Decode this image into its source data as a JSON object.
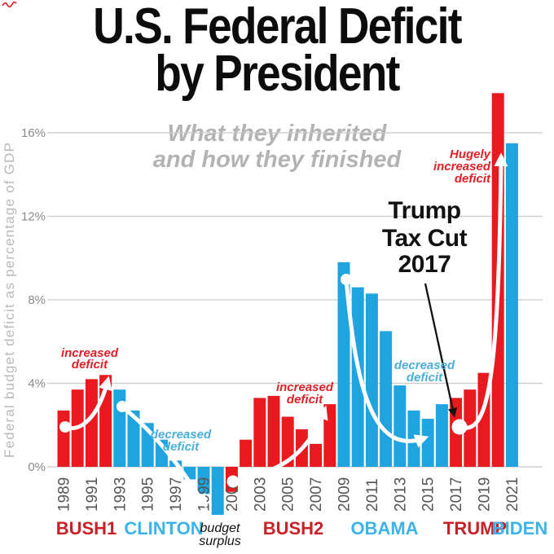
{
  "title": {
    "line1": "U.S. Federal Deficit",
    "line2": "by President"
  },
  "subtitle": {
    "line1": "What they inherited",
    "line2": "and how they finished"
  },
  "chart_data": {
    "type": "bar",
    "title": "U.S. Federal Deficit by President",
    "subtitle": "What they inherited and how they finished",
    "ylabel": "Federal budget deficit as percentage of GDP",
    "xlabel": "",
    "ylim": [
      -3.2,
      18.5
    ],
    "grid": true,
    "gridlines_percent": [
      0,
      4,
      8,
      12,
      16
    ],
    "yticks": [
      {
        "label": "0%",
        "value": 0
      },
      {
        "label": "4%",
        "value": 4
      },
      {
        "label": "8%",
        "value": 8
      },
      {
        "label": "12%",
        "value": 12
      },
      {
        "label": "16%",
        "value": 16
      }
    ],
    "x_tick_years": [
      1989,
      1991,
      1993,
      1995,
      1997,
      1999,
      2001,
      2003,
      2005,
      2007,
      2009,
      2011,
      2013,
      2015,
      2017,
      2019,
      2021
    ],
    "presidents": [
      {
        "label": "BUSH1",
        "party": "red",
        "start_year": 1989,
        "values": [
          2.7,
          3.7,
          4.2,
          4.4
        ]
      },
      {
        "label": "CLINTON",
        "party": "blue",
        "start_year": 1993,
        "values": [
          3.7,
          2.7,
          2.1,
          1.3,
          0.3,
          -0.6,
          -1.3,
          -2.3
        ]
      },
      {
        "label": "BUSH2",
        "party": "red",
        "start_year": 2001,
        "values": [
          -1.2,
          1.3,
          3.3,
          3.4,
          2.4,
          1.8,
          1.1,
          3.0
        ]
      },
      {
        "label": "OBAMA",
        "party": "blue",
        "start_year": 2009,
        "values": [
          9.8,
          8.6,
          8.3,
          6.5,
          3.9,
          2.7,
          2.3,
          3.0
        ]
      },
      {
        "label": "TRUMP",
        "party": "red",
        "start_year": 2017,
        "values": [
          3.3,
          3.7,
          4.5,
          17.9
        ]
      },
      {
        "label": "BIDEN",
        "party": "blue",
        "start_year": 2021,
        "values": [
          15.5
        ]
      }
    ],
    "annotations": [
      {
        "id": "inc1",
        "lines": [
          "increased",
          "deficit"
        ],
        "color_key": "annotation_red"
      },
      {
        "id": "dec1",
        "lines": [
          "decreased",
          "deficit"
        ],
        "color_key": "annotation_blue"
      },
      {
        "id": "inc2",
        "lines": [
          "increased",
          "deficit"
        ],
        "color_key": "annotation_red"
      },
      {
        "id": "dec2",
        "lines": [
          "decreased",
          "deficit"
        ],
        "color_key": "annotation_blue"
      },
      {
        "id": "huge",
        "lines": [
          "Hugely",
          "increased",
          "deficit"
        ],
        "color_key": "annotation_red"
      },
      {
        "id": "surplus",
        "lines": [
          "budget",
          "surplus"
        ],
        "color_key": "ink"
      },
      {
        "id": "taxcut",
        "lines": [
          "Trump",
          "Tax Cut",
          "2017"
        ],
        "color_key": "ink"
      }
    ],
    "legend_position": "none"
  },
  "colors": {
    "bar_red": "#e8191f",
    "bar_blue": "#1fa4e0",
    "label_red": "#c92128",
    "label_blue": "#3cb4e8",
    "annotation_red": "#e02026",
    "annotation_blue": "#4aafdc",
    "grid": "#c9c9c9",
    "ytick_text": "#8a8a8a",
    "xtick_text": "#555555",
    "ylabel_text": "#b9b9b9",
    "subtitle_text": "#b3b3b3",
    "ink": "#121212",
    "arrow_white": "#ffffff"
  }
}
